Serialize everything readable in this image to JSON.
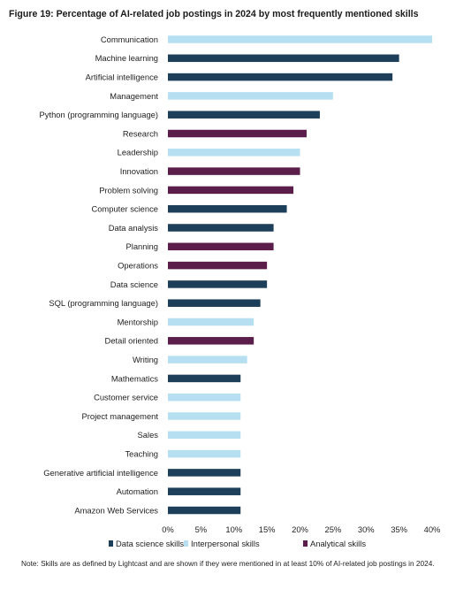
{
  "title": "Figure 19: Percentage of AI-related job postings in 2024 by most frequently mentioned skills",
  "note": "Note: Skills are as defined by Lightcast and are shown if they were mentioned in at least 10% of AI-related job postings in 2024.",
  "colors": {
    "data_science": "#1d3f5a",
    "interpersonal": "#b6e0f2",
    "analytical": "#5b1e4a"
  },
  "chart_data": {
    "type": "bar",
    "orientation": "horizontal",
    "title": "Figure 19: Percentage of AI-related job postings in 2024 by most frequently mentioned skills",
    "xlim": [
      0,
      40
    ],
    "xticks": [
      "0%",
      "5%",
      "10%",
      "15%",
      "20%",
      "25%",
      "30%",
      "35%",
      "40%"
    ],
    "legend_position": "bottom",
    "legend": [
      {
        "key": "data_science",
        "label": "Data science skills"
      },
      {
        "key": "interpersonal",
        "label": "Interpersonal skills"
      },
      {
        "key": "analytical",
        "label": "Analytical skills"
      }
    ],
    "bars": [
      {
        "label": "Communication",
        "value": 40,
        "group": "interpersonal"
      },
      {
        "label": "Machine learning",
        "value": 35,
        "group": "data_science"
      },
      {
        "label": "Artificial intelligence",
        "value": 34,
        "group": "data_science"
      },
      {
        "label": "Management",
        "value": 25,
        "group": "interpersonal"
      },
      {
        "label": "Python (programming language)",
        "value": 23,
        "group": "data_science"
      },
      {
        "label": "Research",
        "value": 21,
        "group": "analytical"
      },
      {
        "label": "Leadership",
        "value": 20,
        "group": "interpersonal"
      },
      {
        "label": "Innovation",
        "value": 20,
        "group": "analytical"
      },
      {
        "label": "Problem solving",
        "value": 19,
        "group": "analytical"
      },
      {
        "label": "Computer science",
        "value": 18,
        "group": "data_science"
      },
      {
        "label": "Data analysis",
        "value": 16,
        "group": "data_science"
      },
      {
        "label": "Planning",
        "value": 16,
        "group": "analytical"
      },
      {
        "label": "Operations",
        "value": 15,
        "group": "analytical"
      },
      {
        "label": "Data science",
        "value": 15,
        "group": "data_science"
      },
      {
        "label": "SQL (programming language)",
        "value": 14,
        "group": "data_science"
      },
      {
        "label": "Mentorship",
        "value": 13,
        "group": "interpersonal"
      },
      {
        "label": "Detail oriented",
        "value": 13,
        "group": "analytical"
      },
      {
        "label": "Writing",
        "value": 12,
        "group": "interpersonal"
      },
      {
        "label": "Mathematics",
        "value": 11,
        "group": "data_science"
      },
      {
        "label": "Customer service",
        "value": 11,
        "group": "interpersonal"
      },
      {
        "label": "Project management",
        "value": 11,
        "group": "interpersonal"
      },
      {
        "label": "Sales",
        "value": 11,
        "group": "interpersonal"
      },
      {
        "label": "Teaching",
        "value": 11,
        "group": "interpersonal"
      },
      {
        "label": "Generative artificial intelligence",
        "value": 11,
        "group": "data_science"
      },
      {
        "label": "Automation",
        "value": 11,
        "group": "data_science"
      },
      {
        "label": "Amazon Web Services",
        "value": 11,
        "group": "data_science"
      }
    ]
  }
}
